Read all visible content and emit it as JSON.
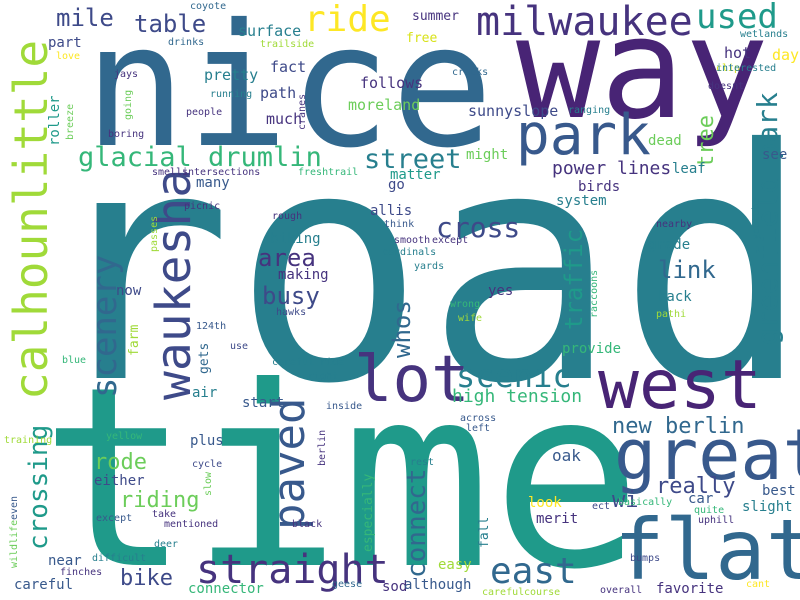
{
  "palette": {
    "darkpurple": "#46337e",
    "purple": "#482475",
    "indigo": "#3e4a89",
    "slate": "#38598c",
    "steelblue": "#31688e",
    "teal": "#277f8e",
    "tealgreen": "#1f9a8a",
    "green": "#35b779",
    "lightgreen": "#6ccd5a",
    "lime": "#a0da39",
    "yellow": "#d8e219",
    "brightyellow": "#fde725"
  },
  "words": [
    {
      "text": "road",
      "color": "teal"
    },
    {
      "text": "time",
      "color": "tealgreen"
    },
    {
      "text": "nice",
      "color": "steelblue"
    },
    {
      "text": "way",
      "color": "purple"
    },
    {
      "text": "west",
      "color": "purple"
    },
    {
      "text": "flat",
      "color": "steelblue"
    },
    {
      "text": "great",
      "color": "slate"
    },
    {
      "text": "park",
      "color": "slate"
    },
    {
      "text": "lot",
      "color": "darkpurple"
    },
    {
      "text": "milwaukee",
      "color": "darkpurple"
    },
    {
      "text": "calhounlittle",
      "color": "lime"
    },
    {
      "text": "waukesha",
      "color": "indigo"
    },
    {
      "text": "paved",
      "color": "slate"
    },
    {
      "text": "scenery",
      "color": "steelblue"
    },
    {
      "text": "straight",
      "color": "darkpurple"
    },
    {
      "text": "east",
      "color": "steelblue"
    },
    {
      "text": "ride",
      "color": "brightyellow"
    },
    {
      "text": "used",
      "color": "tealgreen"
    },
    {
      "text": "glacial drumlin",
      "color": "green"
    },
    {
      "text": "street",
      "color": "teal"
    },
    {
      "text": "scenic",
      "color": "teal"
    },
    {
      "text": "cross",
      "color": "indigo"
    },
    {
      "text": "greenfield park",
      "color": "teal"
    },
    {
      "text": "crossing",
      "color": "tealgreen"
    },
    {
      "text": "connect",
      "color": "steelblue"
    },
    {
      "text": "whos",
      "color": "steelblue"
    },
    {
      "text": "traffic",
      "color": "tealgreen"
    },
    {
      "text": "new berlin",
      "color": "steelblue"
    },
    {
      "text": "busy",
      "color": "indigo"
    },
    {
      "text": "area",
      "color": "darkpurple"
    },
    {
      "text": "link",
      "color": "steelblue"
    },
    {
      "text": "table",
      "color": "indigo"
    },
    {
      "text": "mile",
      "color": "indigo"
    },
    {
      "text": "really",
      "color": "indigo"
    },
    {
      "text": "rode",
      "color": "lightgreen"
    },
    {
      "text": "riding",
      "color": "lightgreen"
    },
    {
      "text": "bike",
      "color": "indigo"
    },
    {
      "text": "wi",
      "color": "indigo"
    },
    {
      "text": "tree",
      "color": "lightgreen"
    },
    {
      "text": "power lines",
      "color": "darkpurple"
    },
    {
      "text": "high tension",
      "color": "green"
    },
    {
      "text": "oak",
      "color": "slate"
    },
    {
      "text": "surface",
      "color": "teal"
    },
    {
      "text": "pretty",
      "color": "teal"
    },
    {
      "text": "fact",
      "color": "indigo"
    },
    {
      "text": "path",
      "color": "indigo"
    },
    {
      "text": "much",
      "color": "darkpurple"
    },
    {
      "text": "follows",
      "color": "darkpurple"
    },
    {
      "text": "moreland",
      "color": "lightgreen"
    },
    {
      "text": "sunnyslope",
      "color": "indigo"
    },
    {
      "text": "summer",
      "color": "darkpurple"
    },
    {
      "text": "part",
      "color": "indigo"
    },
    {
      "text": "free",
      "color": "yellow"
    },
    {
      "text": "hot",
      "color": "darkpurple"
    },
    {
      "text": "day",
      "color": "brightyellow"
    },
    {
      "text": "roller",
      "color": "tealgreen"
    },
    {
      "text": "might",
      "color": "lightgreen"
    },
    {
      "text": "matter",
      "color": "tealgreen"
    },
    {
      "text": "many",
      "color": "slate"
    },
    {
      "text": "go",
      "color": "indigo"
    },
    {
      "text": "system",
      "color": "teal"
    },
    {
      "text": "birds",
      "color": "darkpurple"
    },
    {
      "text": "leaf",
      "color": "teal"
    },
    {
      "text": "dead",
      "color": "lightgreen"
    },
    {
      "text": "see",
      "color": "slate"
    },
    {
      "text": "allis",
      "color": "indigo"
    },
    {
      "text": "biking",
      "color": "teal"
    },
    {
      "text": "making",
      "color": "darkpurple"
    },
    {
      "text": "grade",
      "color": "teal"
    },
    {
      "text": "back",
      "color": "teal"
    },
    {
      "text": "now",
      "color": "indigo"
    },
    {
      "text": "farm",
      "color": "lime"
    },
    {
      "text": "yes",
      "color": "darkpurple"
    },
    {
      "text": "gets",
      "color": "steelblue"
    },
    {
      "text": "air",
      "color": "teal"
    },
    {
      "text": "start",
      "color": "slate"
    },
    {
      "text": "provide",
      "color": "green"
    },
    {
      "text": "plus",
      "color": "slate"
    },
    {
      "text": "either",
      "color": "indigo"
    },
    {
      "text": "look",
      "color": "brightyellow"
    },
    {
      "text": "merit",
      "color": "darkpurple"
    },
    {
      "text": "car",
      "color": "slate"
    },
    {
      "text": "best",
      "color": "slate"
    },
    {
      "text": "slight",
      "color": "teal"
    },
    {
      "text": "fall",
      "color": "teal"
    },
    {
      "text": "especially",
      "color": "green"
    },
    {
      "text": "easy",
      "color": "lime"
    },
    {
      "text": "careful",
      "color": "slate"
    },
    {
      "text": "near",
      "color": "slate"
    },
    {
      "text": "sod",
      "color": "darkpurple"
    },
    {
      "text": "although",
      "color": "slate"
    },
    {
      "text": "favorite",
      "color": "darkpurple"
    },
    {
      "text": "connector",
      "color": "green"
    },
    {
      "text": "coyote",
      "color": "steelblue"
    },
    {
      "text": "trailside",
      "color": "lime"
    },
    {
      "text": "drinks",
      "color": "steelblue"
    },
    {
      "text": "love",
      "color": "brightyellow"
    },
    {
      "text": "clip",
      "color": "yellow"
    },
    {
      "text": "jays",
      "color": "darkpurple"
    },
    {
      "text": "running",
      "color": "teal"
    },
    {
      "text": "people",
      "color": "darkpurple"
    },
    {
      "text": "boring",
      "color": "darkpurple"
    },
    {
      "text": "smells",
      "color": "darkpurple"
    },
    {
      "text": "intersections",
      "color": "darkpurple"
    },
    {
      "text": "freshtrail",
      "color": "green"
    },
    {
      "text": "cracks",
      "color": "steelblue"
    },
    {
      "text": "ranging",
      "color": "teal"
    },
    {
      "text": "wetlands",
      "color": "teal"
    },
    {
      "text": "interested",
      "color": "teal"
    },
    {
      "text": "doesnt",
      "color": "darkpurple"
    },
    {
      "text": "cranes",
      "color": "darkpurple"
    },
    {
      "text": "breeze",
      "color": "lightgreen"
    },
    {
      "text": "going",
      "color": "lightgreen"
    },
    {
      "text": "picnic",
      "color": "darkpurple"
    },
    {
      "text": "passes",
      "color": "lime"
    },
    {
      "text": "rough",
      "color": "darkpurple"
    },
    {
      "text": "think",
      "color": "slate"
    },
    {
      "text": "smooth",
      "color": "darkpurple"
    },
    {
      "text": "except",
      "color": "darkpurple"
    },
    {
      "text": "cardinals",
      "color": "teal"
    },
    {
      "text": "yards",
      "color": "teal"
    },
    {
      "text": "nearby",
      "color": "darkpurple"
    },
    {
      "text": "youtube",
      "color": "teal"
    },
    {
      "text": "raccoons",
      "color": "green"
    },
    {
      "text": "124th",
      "color": "slate"
    },
    {
      "text": "hawks",
      "color": "indigo"
    },
    {
      "text": "wrong",
      "color": "green"
    },
    {
      "text": "wife",
      "color": "lime"
    },
    {
      "text": "pathi",
      "color": "lime"
    },
    {
      "text": "blue",
      "color": "green"
    },
    {
      "text": "use",
      "color": "indigo"
    },
    {
      "text": "careful",
      "color": "teal"
    },
    {
      "text": "ride",
      "color": "teal"
    },
    {
      "text": "right",
      "color": "teal"
    },
    {
      "text": "inside",
      "color": "slate"
    },
    {
      "text": "across",
      "color": "slate"
    },
    {
      "text": "left",
      "color": "slate"
    },
    {
      "text": "training",
      "color": "lime"
    },
    {
      "text": "yellow",
      "color": "green"
    },
    {
      "text": "cycle",
      "color": "indigo"
    },
    {
      "text": "berlin",
      "color": "darkpurple"
    },
    {
      "text": "rest",
      "color": "teal"
    },
    {
      "text": "wildlife",
      "color": "lightgreen"
    },
    {
      "text": "even",
      "color": "slate"
    },
    {
      "text": "slow",
      "color": "lightgreen"
    },
    {
      "text": "except",
      "color": "slate"
    },
    {
      "text": "take",
      "color": "darkpurple"
    },
    {
      "text": "mentioned",
      "color": "darkpurple"
    },
    {
      "text": "basically",
      "color": "green"
    },
    {
      "text": "quite",
      "color": "green"
    },
    {
      "text": "uphill",
      "color": "darkpurple"
    },
    {
      "text": "black",
      "color": "darkpurple"
    },
    {
      "text": "ect",
      "color": "indigo"
    },
    {
      "text": "difficult",
      "color": "teal"
    },
    {
      "text": "deer",
      "color": "teal"
    },
    {
      "text": "finches",
      "color": "darkpurple"
    },
    {
      "text": "bumps",
      "color": "indigo"
    },
    {
      "text": "geese",
      "color": "steelblue"
    },
    {
      "text": "careful",
      "color": "lime"
    },
    {
      "text": "course",
      "color": "lime"
    },
    {
      "text": "overall",
      "color": "darkpurple"
    },
    {
      "text": "cant",
      "color": "brightyellow"
    }
  ]
}
